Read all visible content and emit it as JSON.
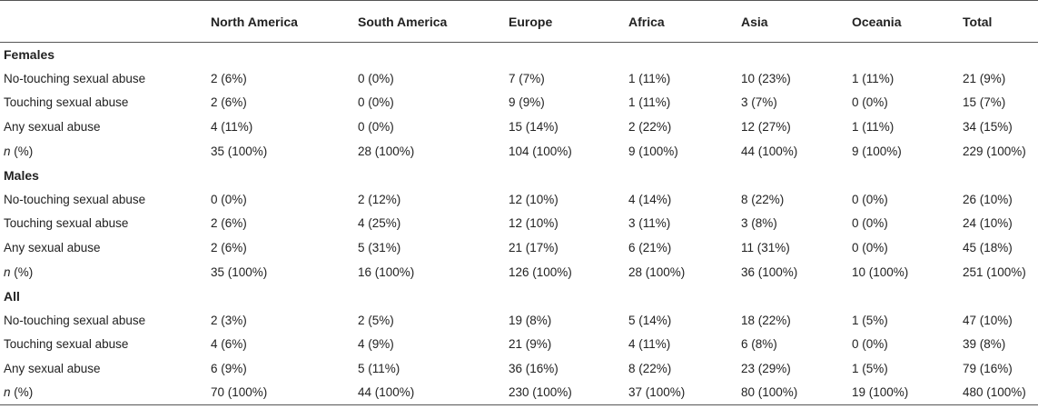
{
  "table": {
    "headers": [
      "",
      "North America",
      "South America",
      "Europe",
      "Africa",
      "Asia",
      "Oceania",
      "Total"
    ],
    "groups": [
      {
        "label": "Females",
        "rows": [
          {
            "label": "No-touching sexual abuse",
            "n_label": "",
            "values": [
              "2 (6%)",
              "0 (0%)",
              "7 (7%)",
              "1 (11%)",
              "10 (23%)",
              "1 (11%)",
              "21 (9%)"
            ]
          },
          {
            "label": "Touching sexual abuse",
            "n_label": "",
            "values": [
              "2 (6%)",
              "0 (0%)",
              "9 (9%)",
              "1 (11%)",
              "3 (7%)",
              "0 (0%)",
              "15 (7%)"
            ]
          },
          {
            "label": "Any sexual abuse",
            "n_label": "",
            "values": [
              "4 (11%)",
              "0 (0%)",
              "15 (14%)",
              "2 (22%)",
              "12 (27%)",
              "1 (11%)",
              "34 (15%)"
            ]
          },
          {
            "label": " (%)",
            "n_label": "n",
            "values": [
              "35 (100%)",
              "28 (100%)",
              "104 (100%)",
              "9 (100%)",
              "44 (100%)",
              "9 (100%)",
              "229 (100%)"
            ]
          }
        ]
      },
      {
        "label": "Males",
        "rows": [
          {
            "label": "No-touching sexual abuse",
            "n_label": "",
            "values": [
              "0 (0%)",
              "2 (12%)",
              "12 (10%)",
              "4 (14%)",
              "8 (22%)",
              "0 (0%)",
              "26 (10%)"
            ]
          },
          {
            "label": "Touching sexual abuse",
            "n_label": "",
            "values": [
              "2 (6%)",
              "4 (25%)",
              "12 (10%)",
              "3 (11%)",
              "3 (8%)",
              "0 (0%)",
              "24 (10%)"
            ]
          },
          {
            "label": "Any sexual abuse",
            "n_label": "",
            "values": [
              "2 (6%)",
              "5 (31%)",
              "21 (17%)",
              "6 (21%)",
              "11 (31%)",
              "0 (0%)",
              "45 (18%)"
            ]
          },
          {
            "label": " (%)",
            "n_label": "n",
            "values": [
              "35 (100%)",
              "16 (100%)",
              "126 (100%)",
              "28 (100%)",
              "36 (100%)",
              "10 (100%)",
              "251 (100%)"
            ]
          }
        ]
      },
      {
        "label": "All",
        "rows": [
          {
            "label": "No-touching sexual abuse",
            "n_label": "",
            "values": [
              "2 (3%)",
              "2 (5%)",
              "19 (8%)",
              "5 (14%)",
              "18 (22%)",
              "1 (5%)",
              "47 (10%)"
            ]
          },
          {
            "label": "Touching sexual abuse",
            "n_label": "",
            "values": [
              "4 (6%)",
              "4 (9%)",
              "21 (9%)",
              "4 (11%)",
              "6 (8%)",
              "0 (0%)",
              "39 (8%)"
            ]
          },
          {
            "label": "Any sexual abuse",
            "n_label": "",
            "values": [
              "6 (9%)",
              "5 (11%)",
              "36 (16%)",
              "8 (22%)",
              "23 (29%)",
              "1 (5%)",
              "79 (16%)"
            ]
          },
          {
            "label": " (%)",
            "n_label": "n",
            "values": [
              "70 (100%)",
              "44 (100%)",
              "230 (100%)",
              "37 (100%)",
              "80 (100%)",
              "19 (100%)",
              "480 (100%)"
            ]
          }
        ]
      }
    ]
  }
}
